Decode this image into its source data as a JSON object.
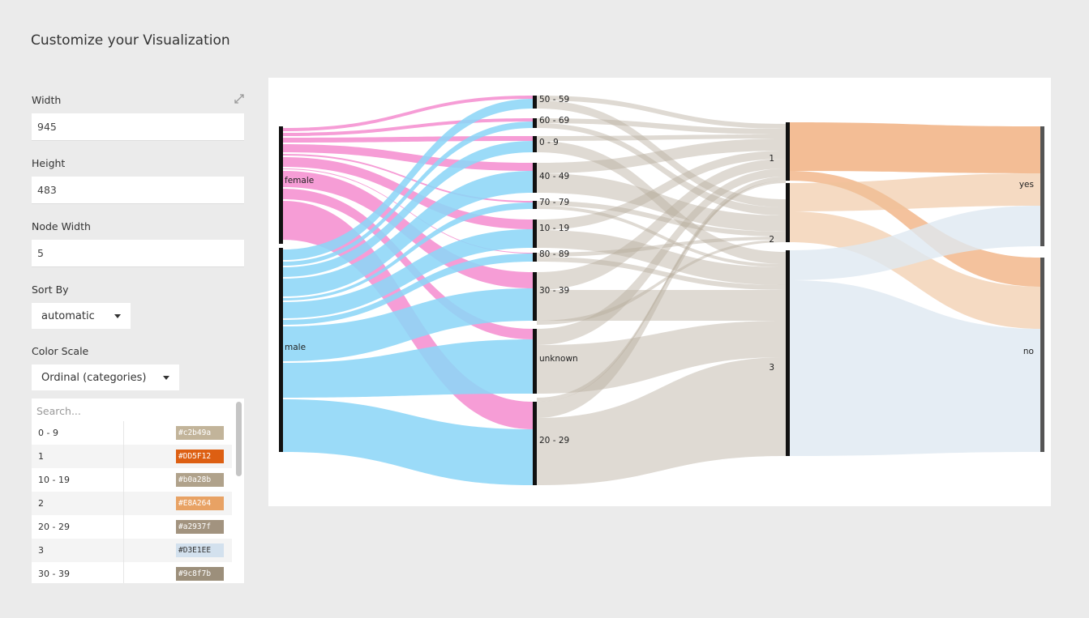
{
  "page_title": "Customize your Visualization",
  "width": {
    "label": "Width",
    "value": "945"
  },
  "height": {
    "label": "Height",
    "value": "483"
  },
  "node_width": {
    "label": "Node Width",
    "value": "5"
  },
  "sort_by": {
    "label": "Sort By",
    "value": "automatic"
  },
  "color_scale": {
    "label": "Color Scale",
    "value": "Ordinal (categories)",
    "search_placeholder": "Search...",
    "rows": [
      {
        "key": "0 - 9",
        "color": "#c2b49a"
      },
      {
        "key": "1",
        "color": "#DD5F12"
      },
      {
        "key": "10 - 19",
        "color": "#b0a28b"
      },
      {
        "key": "2",
        "color": "#E8A264"
      },
      {
        "key": "20 - 29",
        "color": "#a2937f"
      },
      {
        "key": "3",
        "color": "#D3E1EE"
      },
      {
        "key": "30 - 39",
        "color": "#9c8f7b"
      }
    ]
  },
  "icons": {
    "expand": "expand-arrows-icon",
    "dropdown": "caret-down-icon"
  },
  "chart_data": {
    "type": "sankey",
    "columns": [
      {
        "nodes": [
          {
            "label": "female",
            "color": "#f58fd0"
          },
          {
            "label": "male",
            "color": "#8dd6f7"
          }
        ]
      },
      {
        "nodes": [
          {
            "label": "50 - 59"
          },
          {
            "label": "60 - 69"
          },
          {
            "label": "0 - 9"
          },
          {
            "label": "40 - 49"
          },
          {
            "label": "70 - 79"
          },
          {
            "label": "10 - 19"
          },
          {
            "label": "80 - 89"
          },
          {
            "label": "30 - 39"
          },
          {
            "label": "unknown"
          },
          {
            "label": "20 - 29"
          }
        ]
      },
      {
        "nodes": [
          {
            "label": "1"
          },
          {
            "label": "2"
          },
          {
            "label": "3"
          }
        ]
      },
      {
        "nodes": [
          {
            "label": "yes"
          },
          {
            "label": "no"
          }
        ]
      }
    ]
  }
}
